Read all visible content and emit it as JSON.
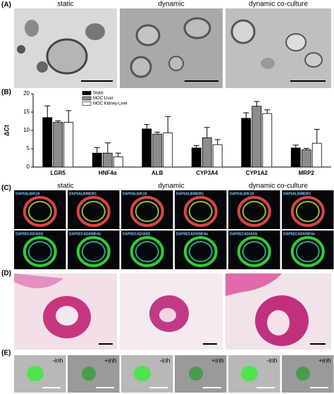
{
  "panels": {
    "a": {
      "label": "(A)",
      "titles": [
        "static",
        "dynamic",
        "dynamic co-culture"
      ]
    },
    "b": {
      "label": "(B)"
    },
    "c": {
      "label": "(C)",
      "titles": [
        "static",
        "dynamic",
        "dynamic co-culture"
      ],
      "stains": [
        [
          "DAPI/ALB/K19",
          "DAPI/ALB/MDR1",
          "DAPI/ALB/K19",
          "DAPI/ALB/MDR1",
          "DAPI/ALB/K19",
          "DAPI/ALB/MDR1"
        ],
        [
          "DAPI/ECAD/ASS",
          "DAPI/ECAD/HNF4α",
          "DAPI/ECAD/ASS",
          "DAPI/ECAD/HNF4α",
          "DAPI/ECAD/ASS",
          "DAPI/ECAD/HNF4α"
        ]
      ]
    },
    "d": {
      "label": "(D)"
    },
    "e": {
      "label": "(E)",
      "conditions": [
        "-inh",
        "+inh",
        "-inh",
        "+inh",
        "-inh",
        "+inh"
      ]
    }
  },
  "chart_data": {
    "type": "bar",
    "y_label": "ΔCt",
    "categories": [
      "LGR5",
      "HNF4α",
      "ALB",
      "CYP3A4",
      "CYP1A2",
      "MRP2"
    ],
    "series": [
      {
        "name": "Static",
        "color": "#000000",
        "values": [
          13.5,
          3.8,
          10.4,
          5.2,
          13.3,
          5.2
        ],
        "errors": [
          3.2,
          1.5,
          1.2,
          0.7,
          1.5,
          0.8
        ]
      },
      {
        "name": "MOC Liver",
        "color": "#8c8c8c",
        "values": [
          12.2,
          3.8,
          9.0,
          8.0,
          16.6,
          4.7
        ],
        "errors": [
          0.4,
          2.8,
          0.5,
          2.8,
          1.3,
          0.4
        ]
      },
      {
        "name": "MOC Kidney-Liver",
        "color": "#ffffff",
        "values": [
          12.2,
          2.8,
          9.3,
          6.1,
          14.6,
          6.5
        ],
        "errors": [
          3.2,
          1.0,
          4.5,
          1.4,
          1.0,
          3.8
        ]
      }
    ],
    "ylim": [
      0,
      20
    ],
    "yticks": [
      0,
      5,
      10,
      15,
      20
    ],
    "grid": false,
    "legend": "top-left"
  }
}
